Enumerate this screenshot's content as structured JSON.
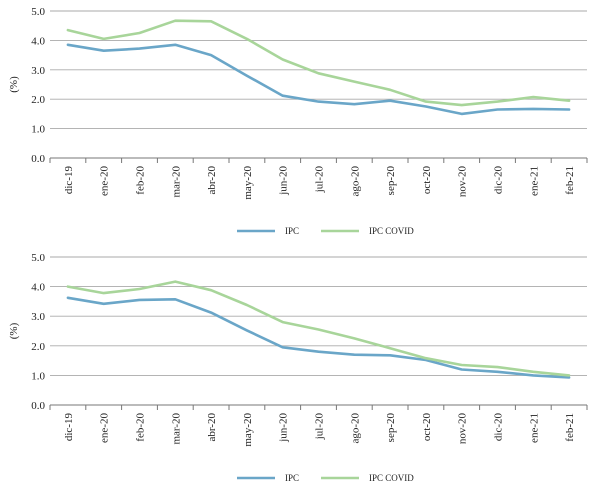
{
  "chart_data": [
    {
      "type": "line",
      "ylabel": "(%)",
      "xlabel": "",
      "ylim": [
        0,
        5
      ],
      "yticks": [
        "0.0",
        "1.0",
        "2.0",
        "3.0",
        "4.0",
        "5.0"
      ],
      "categories": [
        "dic-19",
        "ene-20",
        "feb-20",
        "mar-20",
        "abr-20",
        "may-20",
        "jun-20",
        "jul-20",
        "ago-20",
        "sep-20",
        "oct-20",
        "nov-20",
        "dic-20",
        "ene-21",
        "feb-21"
      ],
      "grid": "horizontal",
      "legend": "bottom",
      "series": [
        {
          "name": "IPC",
          "color": "#6aa6c8",
          "values": [
            3.85,
            3.65,
            3.72,
            3.85,
            3.5,
            2.8,
            2.12,
            1.92,
            1.83,
            1.95,
            1.75,
            1.5,
            1.65,
            1.67,
            1.65
          ]
        },
        {
          "name": "IPC COVID",
          "color": "#a8d59a",
          "values": [
            4.35,
            4.05,
            4.25,
            4.67,
            4.65,
            4.05,
            3.35,
            2.88,
            2.6,
            2.32,
            1.92,
            1.8,
            1.92,
            2.07,
            1.95
          ]
        }
      ]
    },
    {
      "type": "line",
      "ylabel": "(%)",
      "xlabel": "",
      "ylim": [
        0,
        5
      ],
      "yticks": [
        "0.0",
        "1.0",
        "2.0",
        "3.0",
        "4.0",
        "5.0"
      ],
      "categories": [
        "dic-19",
        "ene-20",
        "feb-20",
        "mar-20",
        "abr-20",
        "may-20",
        "jun-20",
        "jul-20",
        "ago-20",
        "sep-20",
        "oct-20",
        "nov-20",
        "dic-20",
        "ene-21",
        "feb-21"
      ],
      "grid": "horizontal",
      "legend": "bottom",
      "series": [
        {
          "name": "IPC",
          "color": "#6aa6c8",
          "values": [
            3.62,
            3.42,
            3.55,
            3.57,
            3.12,
            2.52,
            1.95,
            1.8,
            1.7,
            1.68,
            1.52,
            1.2,
            1.12,
            1.0,
            0.93
          ]
        },
        {
          "name": "IPC COVID",
          "color": "#a8d59a",
          "values": [
            4.0,
            3.78,
            3.92,
            4.17,
            3.88,
            3.38,
            2.8,
            2.55,
            2.25,
            1.92,
            1.58,
            1.35,
            1.28,
            1.12,
            1.0
          ]
        }
      ]
    }
  ]
}
